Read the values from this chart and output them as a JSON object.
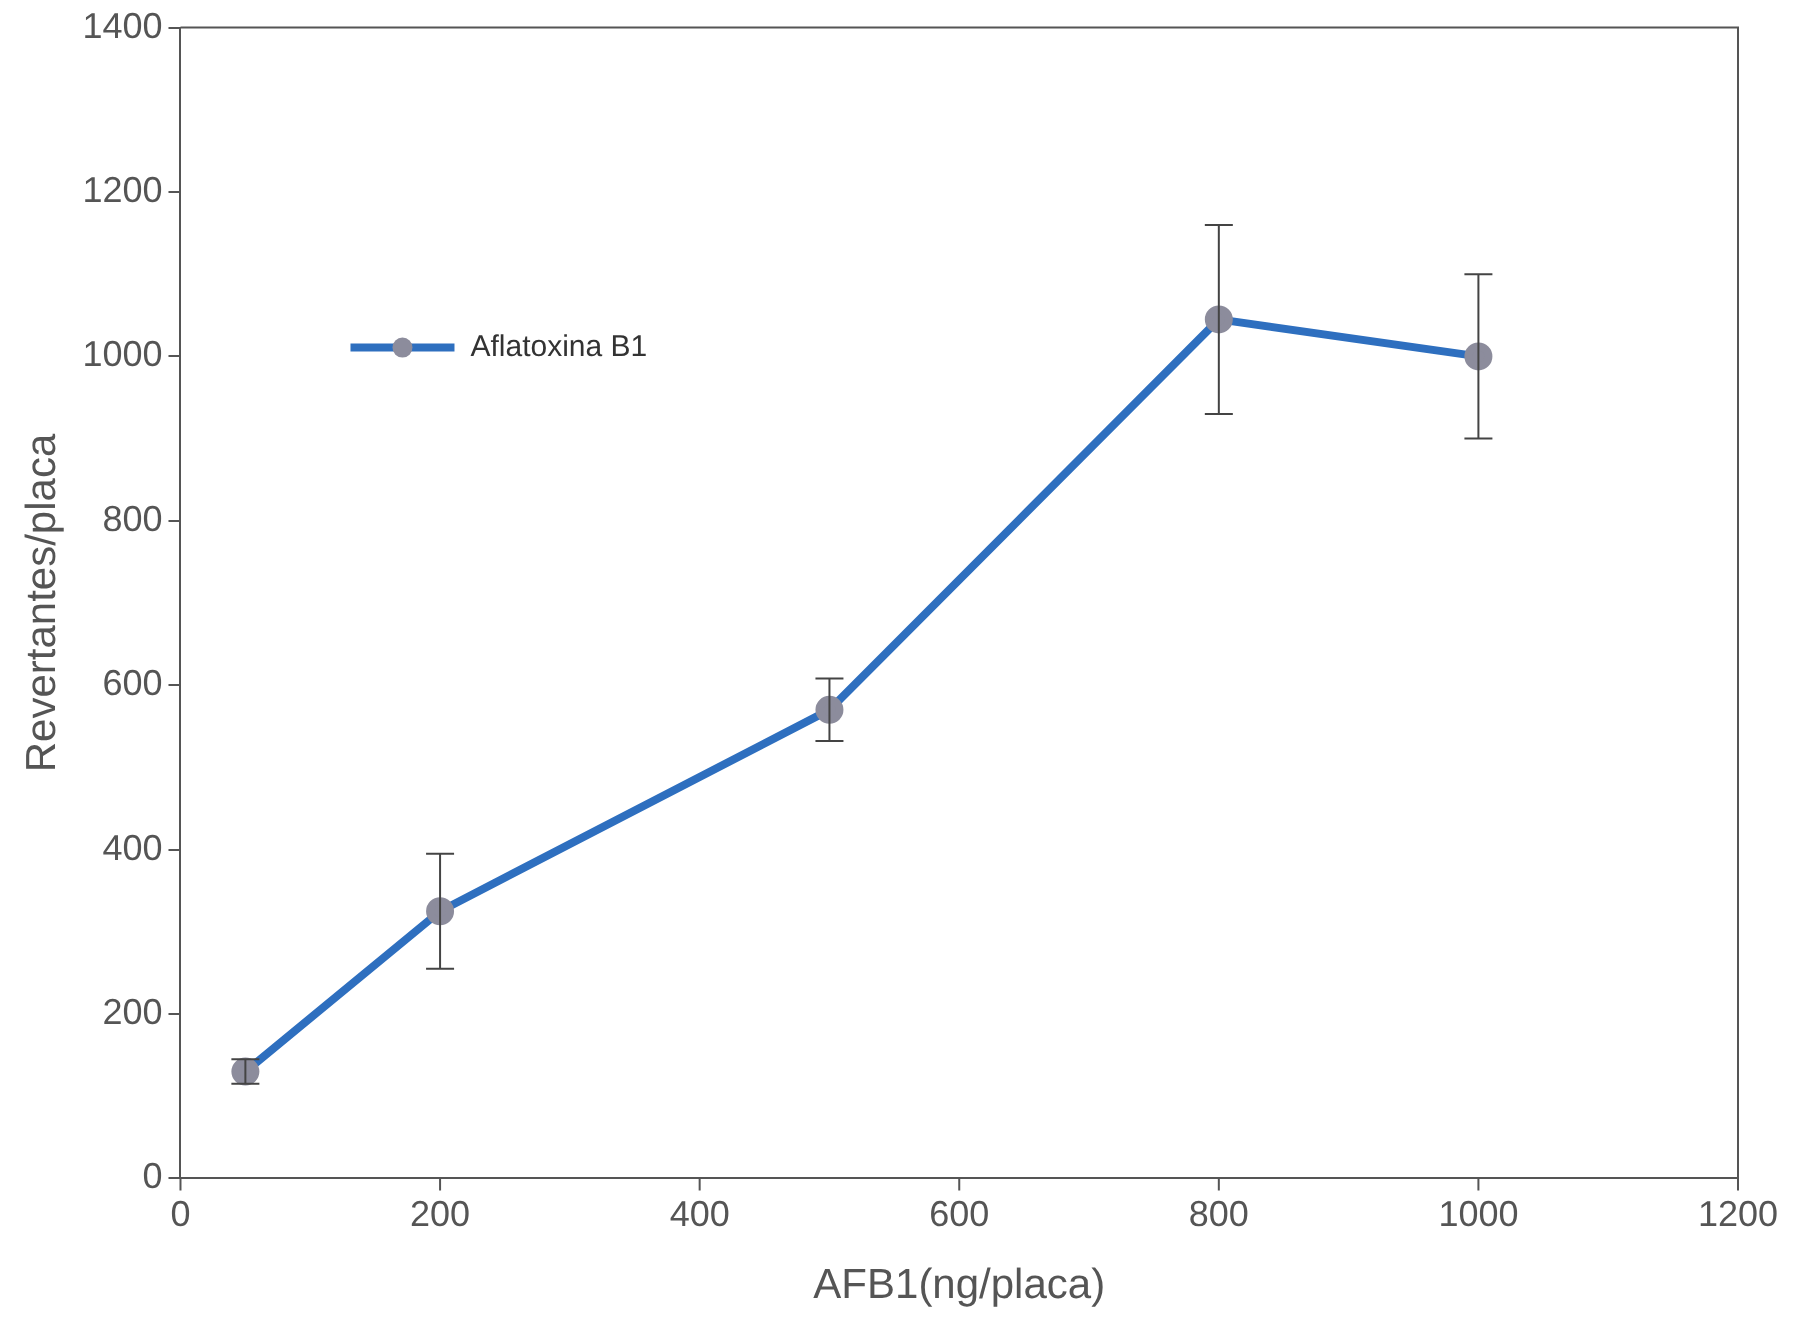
{
  "chart_data": {
    "type": "line",
    "xlabel": "AFB1(ng/placa)",
    "ylabel": "Revertantes/placa",
    "x": [
      50,
      200,
      500,
      800,
      1000
    ],
    "series": [
      {
        "name": "Aflatoxina B1",
        "color": "#2e6fbf",
        "values": [
          130,
          325,
          570,
          1045,
          1000
        ],
        "errors": [
          15,
          70,
          38,
          115,
          100
        ]
      }
    ],
    "xlim": [
      0,
      1200
    ],
    "xticks": [
      0,
      200,
      400,
      600,
      800,
      1000,
      1200
    ],
    "ylim": [
      0,
      1400
    ],
    "yticks": [
      0,
      200,
      400,
      600,
      800,
      1000,
      1200,
      1400
    ],
    "grid": false,
    "legend": "top left",
    "marker": "circle",
    "line_style": "solid"
  }
}
